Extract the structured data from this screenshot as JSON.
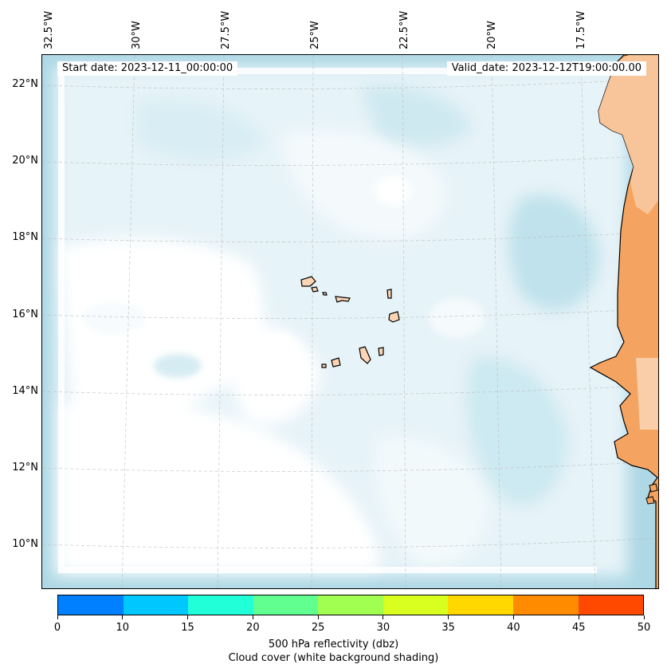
{
  "map": {
    "start_label": "Start date: 2023-12-11_00:00:00",
    "valid_label": "Valid_date: 2023-12-12T19:00:00.00",
    "lat_labels": [
      "22°N",
      "20°N",
      "18°N",
      "16°N",
      "14°N",
      "12°N",
      "10°N"
    ],
    "lon_labels": [
      "32.5°W",
      "30°W",
      "27.5°W",
      "25°W",
      "22.5°W",
      "20°W",
      "17.5°W"
    ],
    "land_color": "#f4a460",
    "island_color": "#fcd5b5",
    "sea_cloud_color": "#aed8e5"
  },
  "colorbar": {
    "colors": [
      "#0080ff",
      "#00c8ff",
      "#20ffd8",
      "#60ff90",
      "#a0ff50",
      "#d8ff20",
      "#ffd800",
      "#ff8c00",
      "#ff4800"
    ],
    "ticks": [
      "0",
      "10",
      "15",
      "20",
      "25",
      "30",
      "35",
      "40",
      "45",
      "50"
    ],
    "label": "500 hPa reflectivity (dbz)",
    "sublabel": "Cloud cover (white background shading)"
  }
}
